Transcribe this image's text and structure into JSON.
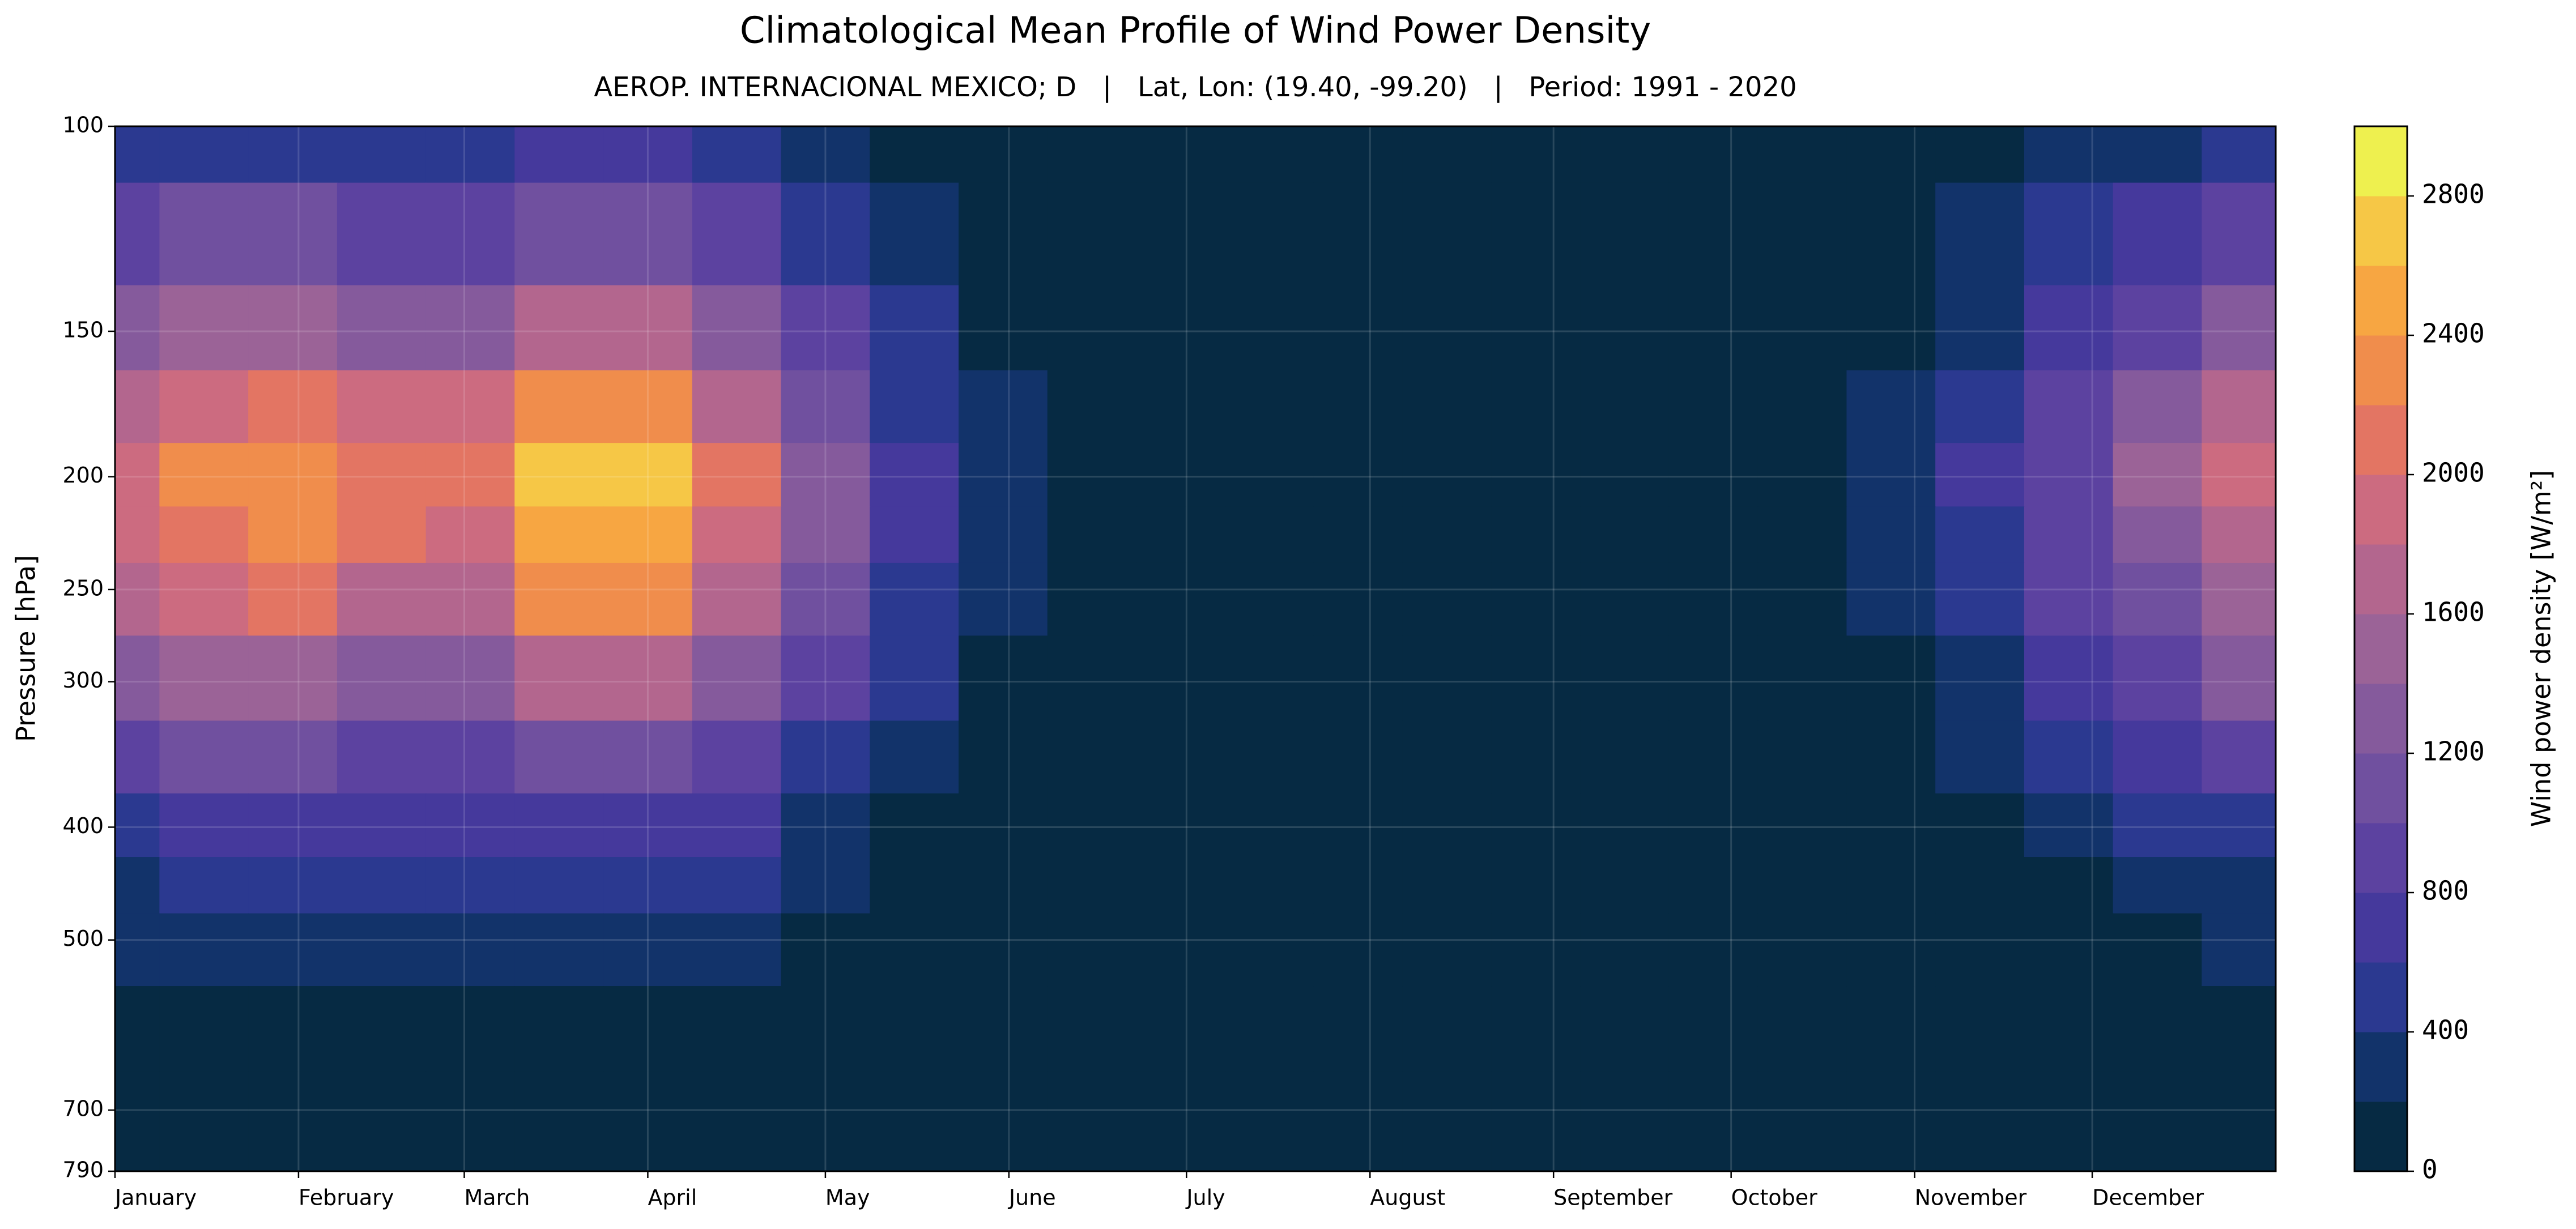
{
  "chart_data": {
    "type": "contourf",
    "title": "Climatological Mean Profile of Wind Power Density",
    "subtitle": "AEROP. INTERNACIONAL MEXICO; D   |   Lat, Lon: (19.40, -99.20)   |   Period: 1991 - 2020",
    "ylabel": "Pressure [hPa]",
    "yscale": "log",
    "ylim": [
      790,
      100
    ],
    "yticks": [
      100,
      150,
      200,
      250,
      300,
      400,
      500,
      700,
      790
    ],
    "xlim": [
      1,
      366
    ],
    "xticks": [
      {
        "value": 1,
        "label": "January"
      },
      {
        "value": 32,
        "label": "February"
      },
      {
        "value": 60,
        "label": "March"
      },
      {
        "value": 91,
        "label": "April"
      },
      {
        "value": 121,
        "label": "May"
      },
      {
        "value": 152,
        "label": "June"
      },
      {
        "value": 182,
        "label": "July"
      },
      {
        "value": 213,
        "label": "August"
      },
      {
        "value": 244,
        "label": "September"
      },
      {
        "value": 274,
        "label": "October"
      },
      {
        "value": 305,
        "label": "November"
      },
      {
        "value": 335,
        "label": "December"
      }
    ],
    "grid": true,
    "x": [
      1,
      16,
      31,
      46,
      61,
      76,
      91,
      106,
      121,
      136,
      151,
      166,
      181,
      196,
      211,
      226,
      241,
      256,
      271,
      286,
      301,
      316,
      331,
      346,
      361
    ],
    "y": [
      100,
      125,
      150,
      175,
      200,
      225,
      250,
      300,
      350,
      400,
      450,
      500,
      600,
      700,
      790
    ],
    "z": [
      [
        475,
        560,
        590,
        525,
        510,
        660,
        660,
        500,
        325,
        165,
        60,
        30,
        25,
        25,
        25,
        25,
        25,
        25,
        25,
        25,
        60,
        150,
        240,
        350,
        465
      ],
      [
        855,
        1010,
        1060,
        945,
        920,
        1190,
        1190,
        900,
        585,
        290,
        110,
        55,
        45,
        45,
        45,
        45,
        45,
        45,
        45,
        45,
        110,
        270,
        430,
        630,
        830
      ],
      [
        1235,
        1460,
        1530,
        1365,
        1330,
        1720,
        1720,
        1300,
        845,
        420,
        160,
        80,
        65,
        65,
        65,
        65,
        65,
        65,
        65,
        65,
        160,
        390,
        620,
        910,
        1200
      ],
      [
        1670,
        1980,
        2070,
        1850,
        1800,
        2330,
        2330,
        1760,
        1145,
        570,
        220,
        105,
        90,
        90,
        90,
        90,
        90,
        90,
        90,
        90,
        220,
        530,
        835,
        1230,
        1630
      ],
      [
        1900,
        2250,
        2350,
        2100,
        2050,
        2650,
        2650,
        2000,
        1300,
        650,
        250,
        120,
        100,
        100,
        100,
        100,
        100,
        100,
        100,
        100,
        250,
        600,
        950,
        1400,
        1850
      ],
      [
        1805,
        2140,
        2230,
        2000,
        1950,
        2520,
        2520,
        1900,
        1235,
        620,
        240,
        115,
        95,
        95,
        95,
        95,
        95,
        95,
        95,
        95,
        240,
        570,
        900,
        1330,
        1760
      ],
      [
        1615,
        1910,
        2000,
        1785,
        1740,
        2250,
        2250,
        1700,
        1105,
        550,
        210,
        100,
        85,
        85,
        85,
        85,
        85,
        85,
        85,
        85,
        210,
        510,
        810,
        1190,
        1570
      ],
      [
        1235,
        1460,
        1530,
        1365,
        1330,
        1720,
        1720,
        1300,
        845,
        420,
        160,
        80,
        65,
        65,
        65,
        65,
        65,
        65,
        65,
        65,
        160,
        390,
        620,
        910,
        1200
      ],
      [
        855,
        1010,
        1060,
        945,
        920,
        1190,
        1190,
        900,
        585,
        290,
        110,
        55,
        45,
        45,
        45,
        45,
        45,
        45,
        45,
        45,
        110,
        270,
        430,
        630,
        830
      ],
      [
        570,
        675,
        705,
        630,
        615,
        795,
        795,
        600,
        390,
        195,
        75,
        35,
        30,
        30,
        30,
        30,
        30,
        30,
        30,
        30,
        75,
        180,
        285,
        420,
        555
      ],
      [
        380,
        450,
        470,
        420,
        410,
        530,
        530,
        400,
        260,
        130,
        50,
        25,
        20,
        20,
        20,
        20,
        20,
        20,
        20,
        20,
        50,
        120,
        190,
        280,
        370
      ],
      [
        230,
        270,
        280,
        250,
        245,
        320,
        320,
        240,
        155,
        80,
        30,
        15,
        12,
        12,
        12,
        12,
        12,
        12,
        12,
        12,
        30,
        70,
        115,
        170,
        220
      ],
      [
        95,
        110,
        120,
        105,
        100,
        130,
        130,
        100,
        65,
        35,
        15,
        5,
        5,
        5,
        5,
        5,
        5,
        5,
        5,
        5,
        15,
        30,
        50,
        70,
        95
      ],
      [
        55,
        70,
        70,
        65,
        60,
        80,
        80,
        60,
        40,
        20,
        8,
        4,
        3,
        3,
        3,
        3,
        3,
        3,
        3,
        3,
        8,
        18,
        30,
        40,
        55
      ],
      [
        40,
        45,
        45,
        40,
        40,
        55,
        55,
        40,
        25,
        15,
        5,
        2,
        2,
        2,
        2,
        2,
        2,
        2,
        2,
        2,
        5,
        12,
        20,
        30,
        35
      ]
    ],
    "colorbar": {
      "label": "Wind power density [W/m²]",
      "levels": [
        0,
        200,
        400,
        600,
        800,
        1000,
        1200,
        1400,
        1600,
        1800,
        2000,
        2200,
        2400,
        2600,
        2800,
        3000
      ],
      "colors": [
        "#062a43",
        "#12336a",
        "#2b3990",
        "#45399c",
        "#5c42a0",
        "#70509f",
        "#855a9c",
        "#9b6397",
        "#b3668e",
        "#cc6b80",
        "#e37563",
        "#f08d4c",
        "#f7a642",
        "#f6c746",
        "#eef04f"
      ],
      "ticks": [
        0,
        400,
        800,
        1200,
        1600,
        2000,
        2400,
        2800
      ]
    }
  }
}
